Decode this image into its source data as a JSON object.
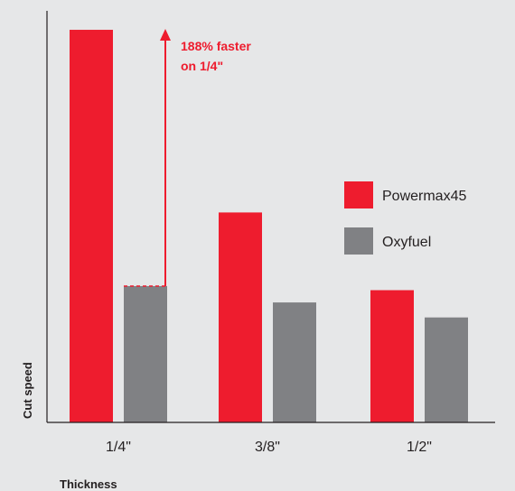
{
  "chart_data": {
    "type": "bar",
    "categories": [
      "1/4\"",
      "3/8\"",
      "1/2\""
    ],
    "series": [
      {
        "name": "Powermax45",
        "values": [
          288,
          154,
          97
        ],
        "color": "#ee1c2e"
      },
      {
        "name": "Oxyfuel",
        "values": [
          100,
          88,
          77
        ],
        "color": "#808184"
      }
    ],
    "xlabel": "Thickness",
    "ylabel": "Cut speed",
    "ylim": [
      0,
      290
    ],
    "grid": false,
    "legend_position": "right",
    "annotation": {
      "lines": [
        "188% faster",
        "on 1/4\""
      ],
      "category_index": 0
    }
  }
}
